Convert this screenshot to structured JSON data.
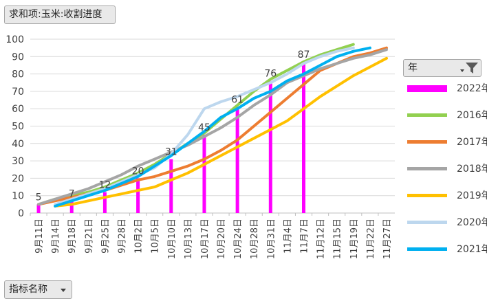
{
  "title_button": "求和项:玉米:收割进度",
  "axis_field_button": "指标名称",
  "legend_field_button": "年",
  "chart_data": {
    "type": "line",
    "title": "求和项:玉米:收割进度",
    "ylim": [
      0,
      100
    ],
    "yticks": [
      0,
      10,
      20,
      30,
      40,
      50,
      60,
      70,
      80,
      90,
      100
    ],
    "grid": true,
    "legend_position": "right",
    "categories": [
      "9月11日",
      "9月14日",
      "9月18日",
      "9月21日",
      "9月25日",
      "9月28日",
      "10月2日",
      "10月5日",
      "10月10日",
      "10月13日",
      "10月17日",
      "10月20日",
      "10月24日",
      "10月28日",
      "10月31日",
      "11月4日",
      "11月7日",
      "11月12日",
      "11月15日",
      "11月19日",
      "11月22日",
      "11月27日"
    ],
    "bar_series": {
      "name": "2022年",
      "color": "#ff00ff",
      "points": [
        [
          0,
          5
        ],
        [
          2,
          7
        ],
        [
          4,
          12
        ],
        [
          6,
          20
        ],
        [
          8,
          31
        ],
        [
          10,
          45
        ],
        [
          12,
          61
        ],
        [
          14,
          76
        ],
        [
          16,
          87
        ]
      ],
      "labels": [
        "5",
        "7",
        "12",
        "20",
        "31",
        "45",
        "61",
        "76",
        "87"
      ]
    },
    "line_series": [
      {
        "name": "2016年",
        "color": "#92d050",
        "points": [
          [
            0,
            5
          ],
          [
            1,
            8
          ],
          [
            2,
            10
          ],
          [
            3,
            12
          ],
          [
            4,
            15
          ],
          [
            5,
            19
          ],
          [
            6,
            23
          ],
          [
            7,
            28
          ],
          [
            8,
            34
          ],
          [
            9,
            40
          ],
          [
            10,
            46
          ],
          [
            11,
            54
          ],
          [
            12,
            62
          ],
          [
            13,
            70
          ],
          [
            14,
            77
          ],
          [
            15,
            82
          ],
          [
            16,
            87
          ],
          [
            17,
            91
          ],
          [
            18,
            94
          ],
          [
            19,
            97
          ]
        ]
      },
      {
        "name": "2017年",
        "color": "#ed7d31",
        "points": [
          [
            0,
            5
          ],
          [
            1,
            7
          ],
          [
            2,
            9
          ],
          [
            3,
            11
          ],
          [
            4,
            13
          ],
          [
            5,
            16
          ],
          [
            6,
            19
          ],
          [
            7,
            21
          ],
          [
            8,
            24
          ],
          [
            9,
            27
          ],
          [
            10,
            31
          ],
          [
            11,
            36
          ],
          [
            12,
            42
          ],
          [
            13,
            50
          ],
          [
            14,
            58
          ],
          [
            15,
            66
          ],
          [
            16,
            74
          ],
          [
            17,
            82
          ],
          [
            18,
            86
          ],
          [
            19,
            90
          ],
          [
            20,
            92
          ],
          [
            21,
            95
          ]
        ]
      },
      {
        "name": "2018年",
        "color": "#a5a5a5",
        "points": [
          [
            0,
            5
          ],
          [
            1,
            8
          ],
          [
            2,
            11
          ],
          [
            3,
            14
          ],
          [
            4,
            18
          ],
          [
            5,
            22
          ],
          [
            6,
            27
          ],
          [
            7,
            31
          ],
          [
            8,
            35
          ],
          [
            9,
            39
          ],
          [
            10,
            44
          ],
          [
            11,
            49
          ],
          [
            12,
            55
          ],
          [
            13,
            62
          ],
          [
            14,
            68
          ],
          [
            15,
            75
          ],
          [
            16,
            79
          ],
          [
            17,
            83
          ],
          [
            18,
            86
          ],
          [
            19,
            89
          ],
          [
            20,
            91
          ],
          [
            21,
            94
          ]
        ]
      },
      {
        "name": "2019年",
        "color": "#ffc000",
        "points": [
          [
            1,
            4
          ],
          [
            2,
            5
          ],
          [
            3,
            7
          ],
          [
            4,
            9
          ],
          [
            5,
            11
          ],
          [
            6,
            13
          ],
          [
            7,
            15
          ],
          [
            8,
            19
          ],
          [
            9,
            23
          ],
          [
            10,
            28
          ],
          [
            11,
            33
          ],
          [
            12,
            38
          ],
          [
            13,
            43
          ],
          [
            14,
            48
          ],
          [
            15,
            53
          ],
          [
            16,
            60
          ],
          [
            17,
            67
          ],
          [
            18,
            73
          ],
          [
            19,
            79
          ],
          [
            20,
            84
          ],
          [
            21,
            89
          ]
        ]
      },
      {
        "name": "2020年",
        "color": "#bdd7ee",
        "points": [
          [
            1,
            5
          ],
          [
            2,
            8
          ],
          [
            3,
            11
          ],
          [
            4,
            14
          ],
          [
            5,
            18
          ],
          [
            6,
            22
          ],
          [
            7,
            26
          ],
          [
            8,
            34
          ],
          [
            9,
            45
          ],
          [
            10,
            60
          ],
          [
            11,
            64
          ],
          [
            12,
            67
          ],
          [
            13,
            71
          ],
          [
            14,
            75
          ],
          [
            15,
            80
          ],
          [
            16,
            86
          ],
          [
            17,
            90
          ],
          [
            18,
            93
          ],
          [
            19,
            95
          ]
        ]
      },
      {
        "name": "2021年",
        "color": "#00b0f0",
        "points": [
          [
            1,
            4
          ],
          [
            2,
            7
          ],
          [
            3,
            10
          ],
          [
            4,
            13
          ],
          [
            5,
            17
          ],
          [
            6,
            21
          ],
          [
            7,
            27
          ],
          [
            8,
            33
          ],
          [
            9,
            40
          ],
          [
            10,
            47
          ],
          [
            11,
            55
          ],
          [
            12,
            60
          ],
          [
            13,
            66
          ],
          [
            14,
            70
          ],
          [
            15,
            76
          ],
          [
            16,
            80
          ],
          [
            17,
            85
          ],
          [
            18,
            90
          ],
          [
            19,
            93
          ],
          [
            20,
            95
          ]
        ]
      }
    ],
    "legend_order": [
      "2022年",
      "2016年",
      "2017年",
      "2018年",
      "2019年",
      "2020年",
      "2021年"
    ]
  }
}
